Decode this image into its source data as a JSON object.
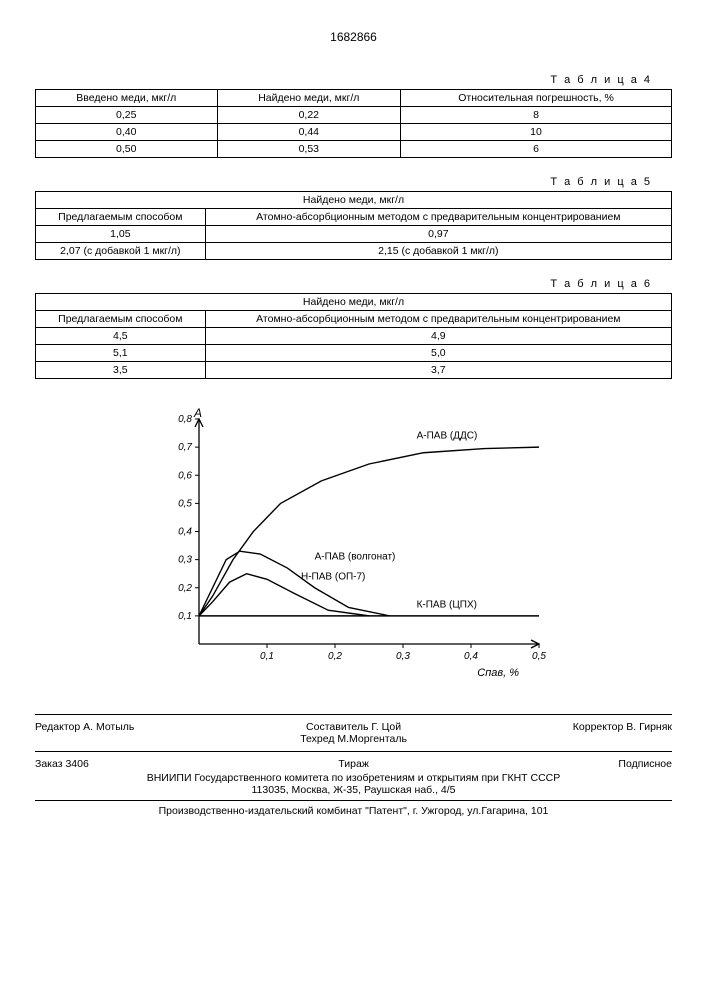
{
  "doc_number": "1682866",
  "table4": {
    "label": "Т а б л и ц а 4",
    "columns": [
      "Введено меди, мкг/л",
      "Найдено меди, мкг/л",
      "Относительная погрешность, %"
    ],
    "rows": [
      [
        "0,25",
        "0,22",
        "8"
      ],
      [
        "0,40",
        "0,44",
        "10"
      ],
      [
        "0,50",
        "0,53",
        "6"
      ]
    ]
  },
  "table5": {
    "label": "Т а б л и ц а 5",
    "header_span": "Найдено меди, мкг/л",
    "columns": [
      "Предлагаемым способом",
      "Атомно-абсорбционным методом с предварительным концентрированием"
    ],
    "rows": [
      [
        "1,05",
        "0,97"
      ],
      [
        "2,07 (с добавкой 1 мкг/л)",
        "2,15 (с добавкой 1 мкг/л)"
      ]
    ]
  },
  "table6": {
    "label": "Т а б л и ц а 6",
    "header_span": "Найдено меди, мкг/л",
    "columns": [
      "Предлагаемым способом",
      "Атомно-абсорбционным методом с предварительным концентрированием"
    ],
    "rows": [
      [
        "4,5",
        "4,9"
      ],
      [
        "5,1",
        "5,0"
      ],
      [
        "3,5",
        "3,7"
      ]
    ]
  },
  "chart": {
    "type": "line",
    "y_label": "A",
    "x_label": "Cпав, %",
    "ylim": [
      0,
      0.8
    ],
    "xlim": [
      0,
      0.5
    ],
    "yticks": [
      0.1,
      0.2,
      0.3,
      0.4,
      0.5,
      0.6,
      0.7,
      0.8
    ],
    "xticks": [
      0.1,
      0.2,
      0.3,
      0.4,
      0.5
    ],
    "background_color": "#ffffff",
    "axis_color": "#000000",
    "line_color": "#000000",
    "line_width": 1.4,
    "label_fontsize": 10,
    "series": [
      {
        "name": "А-ПАВ (ДДС)",
        "points": [
          [
            0.0,
            0.1
          ],
          [
            0.02,
            0.17
          ],
          [
            0.05,
            0.3
          ],
          [
            0.08,
            0.4
          ],
          [
            0.12,
            0.5
          ],
          [
            0.18,
            0.58
          ],
          [
            0.25,
            0.64
          ],
          [
            0.33,
            0.68
          ],
          [
            0.42,
            0.695
          ],
          [
            0.5,
            0.7
          ]
        ],
        "label_xy": [
          0.32,
          0.73
        ]
      },
      {
        "name": "А-ПАВ (волгонат)",
        "points": [
          [
            0.0,
            0.1
          ],
          [
            0.02,
            0.2
          ],
          [
            0.04,
            0.3
          ],
          [
            0.06,
            0.33
          ],
          [
            0.09,
            0.32
          ],
          [
            0.13,
            0.27
          ],
          [
            0.17,
            0.2
          ],
          [
            0.22,
            0.13
          ],
          [
            0.28,
            0.1
          ]
        ],
        "label_xy": [
          0.17,
          0.3
        ]
      },
      {
        "name": "Н-ПАВ (ОП-7)",
        "points": [
          [
            0.0,
            0.1
          ],
          [
            0.02,
            0.15
          ],
          [
            0.045,
            0.22
          ],
          [
            0.07,
            0.25
          ],
          [
            0.1,
            0.23
          ],
          [
            0.14,
            0.18
          ],
          [
            0.19,
            0.12
          ],
          [
            0.25,
            0.1
          ]
        ],
        "label_xy": [
          0.15,
          0.23
        ]
      },
      {
        "name": "К-ПАВ (ЦПХ)",
        "points": [
          [
            0.0,
            0.1
          ],
          [
            0.5,
            0.1
          ]
        ],
        "label_xy": [
          0.32,
          0.13
        ]
      }
    ]
  },
  "credits": {
    "editor_label": "Редактор",
    "editor": "А. Мотыль",
    "compiler_label": "Составитель",
    "compiler": "Г. Цой",
    "techred_label": "Техред",
    "techred": "М.Моргенталь",
    "corrector_label": "Корректор",
    "corrector": "В. Гирняк",
    "order_label": "Заказ",
    "order": "3406",
    "tirazh_label": "Тираж",
    "subscribe": "Подписное"
  },
  "org": {
    "line1": "ВНИИПИ Государственного комитета по изобретениям и открытиям при ГКНТ СССР",
    "line2": "113035, Москва, Ж-35, Раушская наб., 4/5"
  },
  "printer": "Производственно-издательский комбинат \"Патент\", г. Ужгород, ул.Гагарина, 101"
}
